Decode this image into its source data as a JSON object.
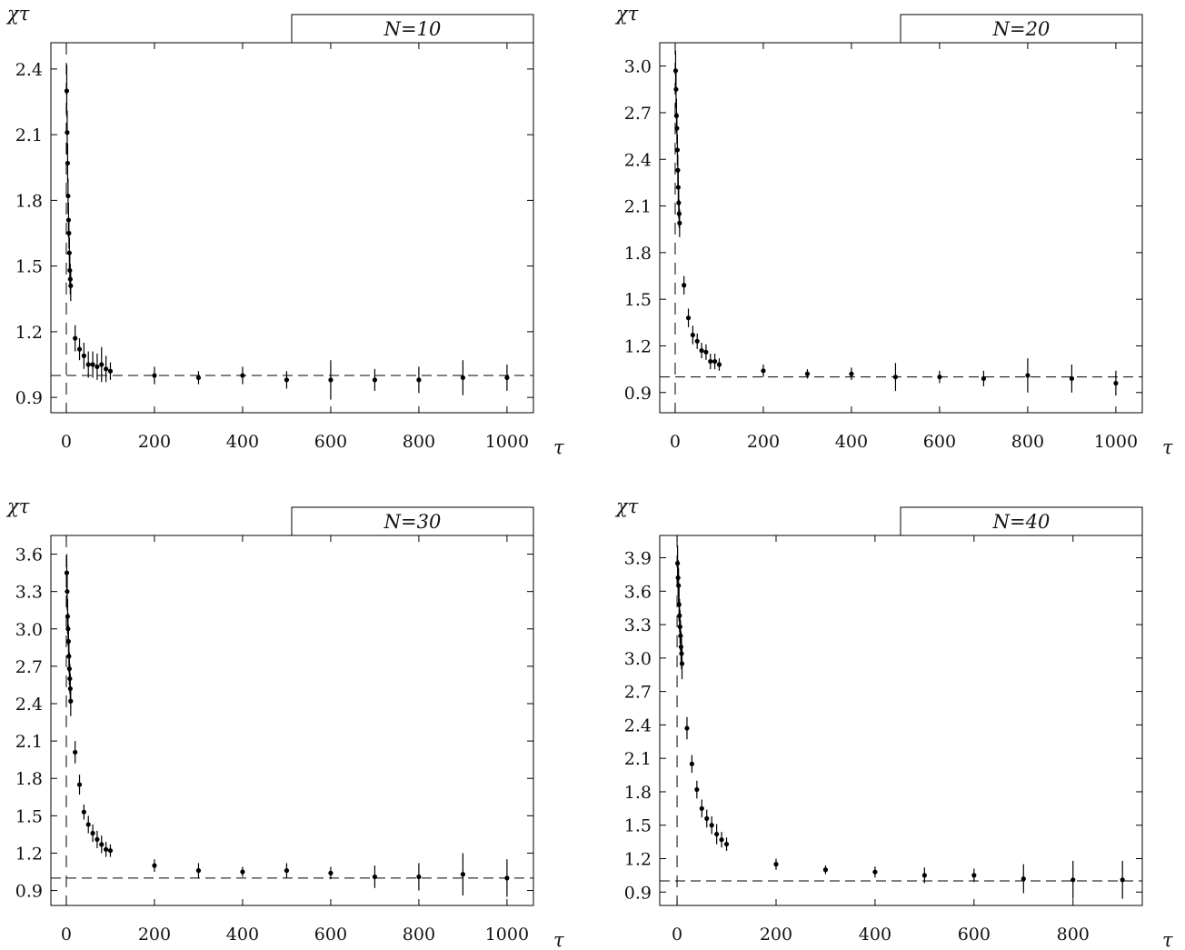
{
  "chart_data": [
    {
      "type": "scatter",
      "legend": "N=10",
      "legend_placement": "top-right",
      "xlabel": "τ",
      "ylabel": "χτ",
      "xlim": [
        -35,
        1060
      ],
      "ylim": [
        0.83,
        2.52
      ],
      "xticks": [
        0,
        200,
        400,
        600,
        800,
        1000
      ],
      "yticks": [
        0.9,
        1.2,
        1.5,
        1.8,
        2.1,
        2.4
      ],
      "reference_line_y": 1.0,
      "reference_line_x": 0,
      "grid": false,
      "points": [
        {
          "x": 1,
          "y": 2.3,
          "err": 0.12
        },
        {
          "x": 2,
          "y": 2.11,
          "err": 0.1
        },
        {
          "x": 3,
          "y": 1.97,
          "err": 0.09
        },
        {
          "x": 4,
          "y": 1.82,
          "err": 0.08
        },
        {
          "x": 5,
          "y": 1.71,
          "err": 0.08
        },
        {
          "x": 6,
          "y": 1.65,
          "err": 0.07
        },
        {
          "x": 7,
          "y": 1.56,
          "err": 0.07
        },
        {
          "x": 8,
          "y": 1.48,
          "err": 0.07
        },
        {
          "x": 9,
          "y": 1.44,
          "err": 0.07
        },
        {
          "x": 10,
          "y": 1.41,
          "err": 0.07
        },
        {
          "x": 20,
          "y": 1.17,
          "err": 0.06
        },
        {
          "x": 30,
          "y": 1.12,
          "err": 0.05
        },
        {
          "x": 40,
          "y": 1.09,
          "err": 0.06
        },
        {
          "x": 50,
          "y": 1.05,
          "err": 0.06
        },
        {
          "x": 60,
          "y": 1.05,
          "err": 0.06
        },
        {
          "x": 70,
          "y": 1.04,
          "err": 0.06
        },
        {
          "x": 80,
          "y": 1.05,
          "err": 0.08
        },
        {
          "x": 90,
          "y": 1.03,
          "err": 0.06
        },
        {
          "x": 100,
          "y": 1.02,
          "err": 0.04
        },
        {
          "x": 200,
          "y": 1.0,
          "err": 0.04
        },
        {
          "x": 300,
          "y": 0.99,
          "err": 0.03
        },
        {
          "x": 400,
          "y": 1.0,
          "err": 0.04
        },
        {
          "x": 500,
          "y": 0.98,
          "err": 0.04
        },
        {
          "x": 600,
          "y": 0.98,
          "err": 0.09
        },
        {
          "x": 700,
          "y": 0.98,
          "err": 0.05
        },
        {
          "x": 800,
          "y": 0.98,
          "err": 0.06
        },
        {
          "x": 900,
          "y": 0.99,
          "err": 0.08
        },
        {
          "x": 1000,
          "y": 0.99,
          "err": 0.06
        }
      ]
    },
    {
      "type": "scatter",
      "legend": "N=20",
      "legend_placement": "top-right",
      "xlabel": "τ",
      "ylabel": "χτ",
      "xlim": [
        -35,
        1060
      ],
      "ylim": [
        0.77,
        3.15
      ],
      "xticks": [
        0,
        200,
        400,
        600,
        800,
        1000
      ],
      "yticks": [
        0.9,
        1.2,
        1.5,
        1.8,
        2.1,
        2.4,
        2.7,
        3.0
      ],
      "reference_line_y": 1.0,
      "reference_line_x": 0,
      "grid": false,
      "points": [
        {
          "x": 1,
          "y": 2.97,
          "err": 0.13
        },
        {
          "x": 2,
          "y": 2.85,
          "err": 0.12
        },
        {
          "x": 3,
          "y": 2.68,
          "err": 0.11
        },
        {
          "x": 4,
          "y": 2.6,
          "err": 0.1
        },
        {
          "x": 5,
          "y": 2.46,
          "err": 0.1
        },
        {
          "x": 6,
          "y": 2.33,
          "err": 0.1
        },
        {
          "x": 7,
          "y": 2.22,
          "err": 0.1
        },
        {
          "x": 8,
          "y": 2.12,
          "err": 0.1
        },
        {
          "x": 9,
          "y": 2.05,
          "err": 0.09
        },
        {
          "x": 10,
          "y": 1.99,
          "err": 0.09
        },
        {
          "x": 20,
          "y": 1.59,
          "err": 0.06
        },
        {
          "x": 30,
          "y": 1.38,
          "err": 0.06
        },
        {
          "x": 40,
          "y": 1.27,
          "err": 0.06
        },
        {
          "x": 50,
          "y": 1.23,
          "err": 0.05
        },
        {
          "x": 60,
          "y": 1.17,
          "err": 0.05
        },
        {
          "x": 70,
          "y": 1.16,
          "err": 0.05
        },
        {
          "x": 80,
          "y": 1.1,
          "err": 0.05
        },
        {
          "x": 90,
          "y": 1.1,
          "err": 0.05
        },
        {
          "x": 100,
          "y": 1.08,
          "err": 0.04
        },
        {
          "x": 200,
          "y": 1.04,
          "err": 0.04
        },
        {
          "x": 300,
          "y": 1.02,
          "err": 0.03
        },
        {
          "x": 400,
          "y": 1.02,
          "err": 0.04
        },
        {
          "x": 500,
          "y": 1.0,
          "err": 0.09
        },
        {
          "x": 600,
          "y": 1.0,
          "err": 0.04
        },
        {
          "x": 700,
          "y": 0.99,
          "err": 0.05
        },
        {
          "x": 800,
          "y": 1.01,
          "err": 0.11
        },
        {
          "x": 900,
          "y": 0.99,
          "err": 0.09
        },
        {
          "x": 1000,
          "y": 0.96,
          "err": 0.08
        }
      ]
    },
    {
      "type": "scatter",
      "legend": "N=30",
      "legend_placement": "top-right",
      "xlabel": "τ",
      "ylabel": "χτ",
      "xlim": [
        -35,
        1060
      ],
      "ylim": [
        0.78,
        3.75
      ],
      "xticks": [
        0,
        200,
        400,
        600,
        800,
        1000
      ],
      "yticks": [
        0.9,
        1.2,
        1.5,
        1.8,
        2.1,
        2.4,
        2.7,
        3.0,
        3.3,
        3.6
      ],
      "reference_line_y": 1.0,
      "reference_line_x": 0,
      "grid": false,
      "points": [
        {
          "x": 1,
          "y": 3.45,
          "err": 0.15
        },
        {
          "x": 2,
          "y": 3.3,
          "err": 0.15
        },
        {
          "x": 3,
          "y": 3.1,
          "err": 0.14
        },
        {
          "x": 4,
          "y": 3.0,
          "err": 0.13
        },
        {
          "x": 5,
          "y": 2.9,
          "err": 0.13
        },
        {
          "x": 6,
          "y": 2.78,
          "err": 0.13
        },
        {
          "x": 7,
          "y": 2.68,
          "err": 0.13
        },
        {
          "x": 8,
          "y": 2.6,
          "err": 0.12
        },
        {
          "x": 9,
          "y": 2.52,
          "err": 0.12
        },
        {
          "x": 10,
          "y": 2.42,
          "err": 0.12
        },
        {
          "x": 20,
          "y": 2.01,
          "err": 0.09
        },
        {
          "x": 30,
          "y": 1.75,
          "err": 0.08
        },
        {
          "x": 40,
          "y": 1.53,
          "err": 0.06
        },
        {
          "x": 50,
          "y": 1.43,
          "err": 0.07
        },
        {
          "x": 60,
          "y": 1.36,
          "err": 0.07
        },
        {
          "x": 70,
          "y": 1.31,
          "err": 0.07
        },
        {
          "x": 80,
          "y": 1.27,
          "err": 0.07
        },
        {
          "x": 90,
          "y": 1.23,
          "err": 0.06
        },
        {
          "x": 100,
          "y": 1.22,
          "err": 0.05
        },
        {
          "x": 200,
          "y": 1.1,
          "err": 0.05
        },
        {
          "x": 300,
          "y": 1.06,
          "err": 0.06
        },
        {
          "x": 400,
          "y": 1.05,
          "err": 0.04
        },
        {
          "x": 500,
          "y": 1.06,
          "err": 0.06
        },
        {
          "x": 600,
          "y": 1.04,
          "err": 0.05
        },
        {
          "x": 700,
          "y": 1.01,
          "err": 0.09
        },
        {
          "x": 800,
          "y": 1.01,
          "err": 0.11
        },
        {
          "x": 900,
          "y": 1.03,
          "err": 0.17
        },
        {
          "x": 1000,
          "y": 1.0,
          "err": 0.15
        }
      ]
    },
    {
      "type": "scatter",
      "legend": "N=40",
      "legend_placement": "top-right",
      "xlabel": "τ",
      "ylabel": "χτ",
      "xlim": [
        -35,
        940
      ],
      "ylim": [
        0.78,
        4.1
      ],
      "xticks": [
        0,
        200,
        400,
        600,
        800
      ],
      "yticks": [
        0.9,
        1.2,
        1.5,
        1.8,
        2.1,
        2.4,
        2.7,
        3.0,
        3.3,
        3.6,
        3.9
      ],
      "reference_line_y": 1.0,
      "reference_line_x": 0,
      "grid": false,
      "points": [
        {
          "x": 1,
          "y": 3.85,
          "err": 0.16
        },
        {
          "x": 2,
          "y": 3.72,
          "err": 0.16
        },
        {
          "x": 3,
          "y": 3.65,
          "err": 0.16
        },
        {
          "x": 4,
          "y": 3.48,
          "err": 0.15
        },
        {
          "x": 5,
          "y": 3.38,
          "err": 0.15
        },
        {
          "x": 6,
          "y": 3.28,
          "err": 0.15
        },
        {
          "x": 7,
          "y": 3.2,
          "err": 0.14
        },
        {
          "x": 8,
          "y": 3.1,
          "err": 0.14
        },
        {
          "x": 9,
          "y": 3.04,
          "err": 0.14
        },
        {
          "x": 10,
          "y": 2.95,
          "err": 0.14
        },
        {
          "x": 20,
          "y": 2.37,
          "err": 0.1
        },
        {
          "x": 30,
          "y": 2.05,
          "err": 0.08
        },
        {
          "x": 40,
          "y": 1.82,
          "err": 0.08
        },
        {
          "x": 50,
          "y": 1.65,
          "err": 0.08
        },
        {
          "x": 60,
          "y": 1.56,
          "err": 0.08
        },
        {
          "x": 70,
          "y": 1.5,
          "err": 0.08
        },
        {
          "x": 80,
          "y": 1.42,
          "err": 0.09
        },
        {
          "x": 90,
          "y": 1.37,
          "err": 0.07
        },
        {
          "x": 100,
          "y": 1.33,
          "err": 0.06
        },
        {
          "x": 200,
          "y": 1.15,
          "err": 0.05
        },
        {
          "x": 300,
          "y": 1.1,
          "err": 0.04
        },
        {
          "x": 400,
          "y": 1.08,
          "err": 0.05
        },
        {
          "x": 500,
          "y": 1.05,
          "err": 0.07
        },
        {
          "x": 600,
          "y": 1.05,
          "err": 0.06
        },
        {
          "x": 700,
          "y": 1.02,
          "err": 0.13
        },
        {
          "x": 800,
          "y": 1.01,
          "err": 0.17
        },
        {
          "x": 900,
          "y": 1.01,
          "err": 0.17
        }
      ]
    }
  ]
}
